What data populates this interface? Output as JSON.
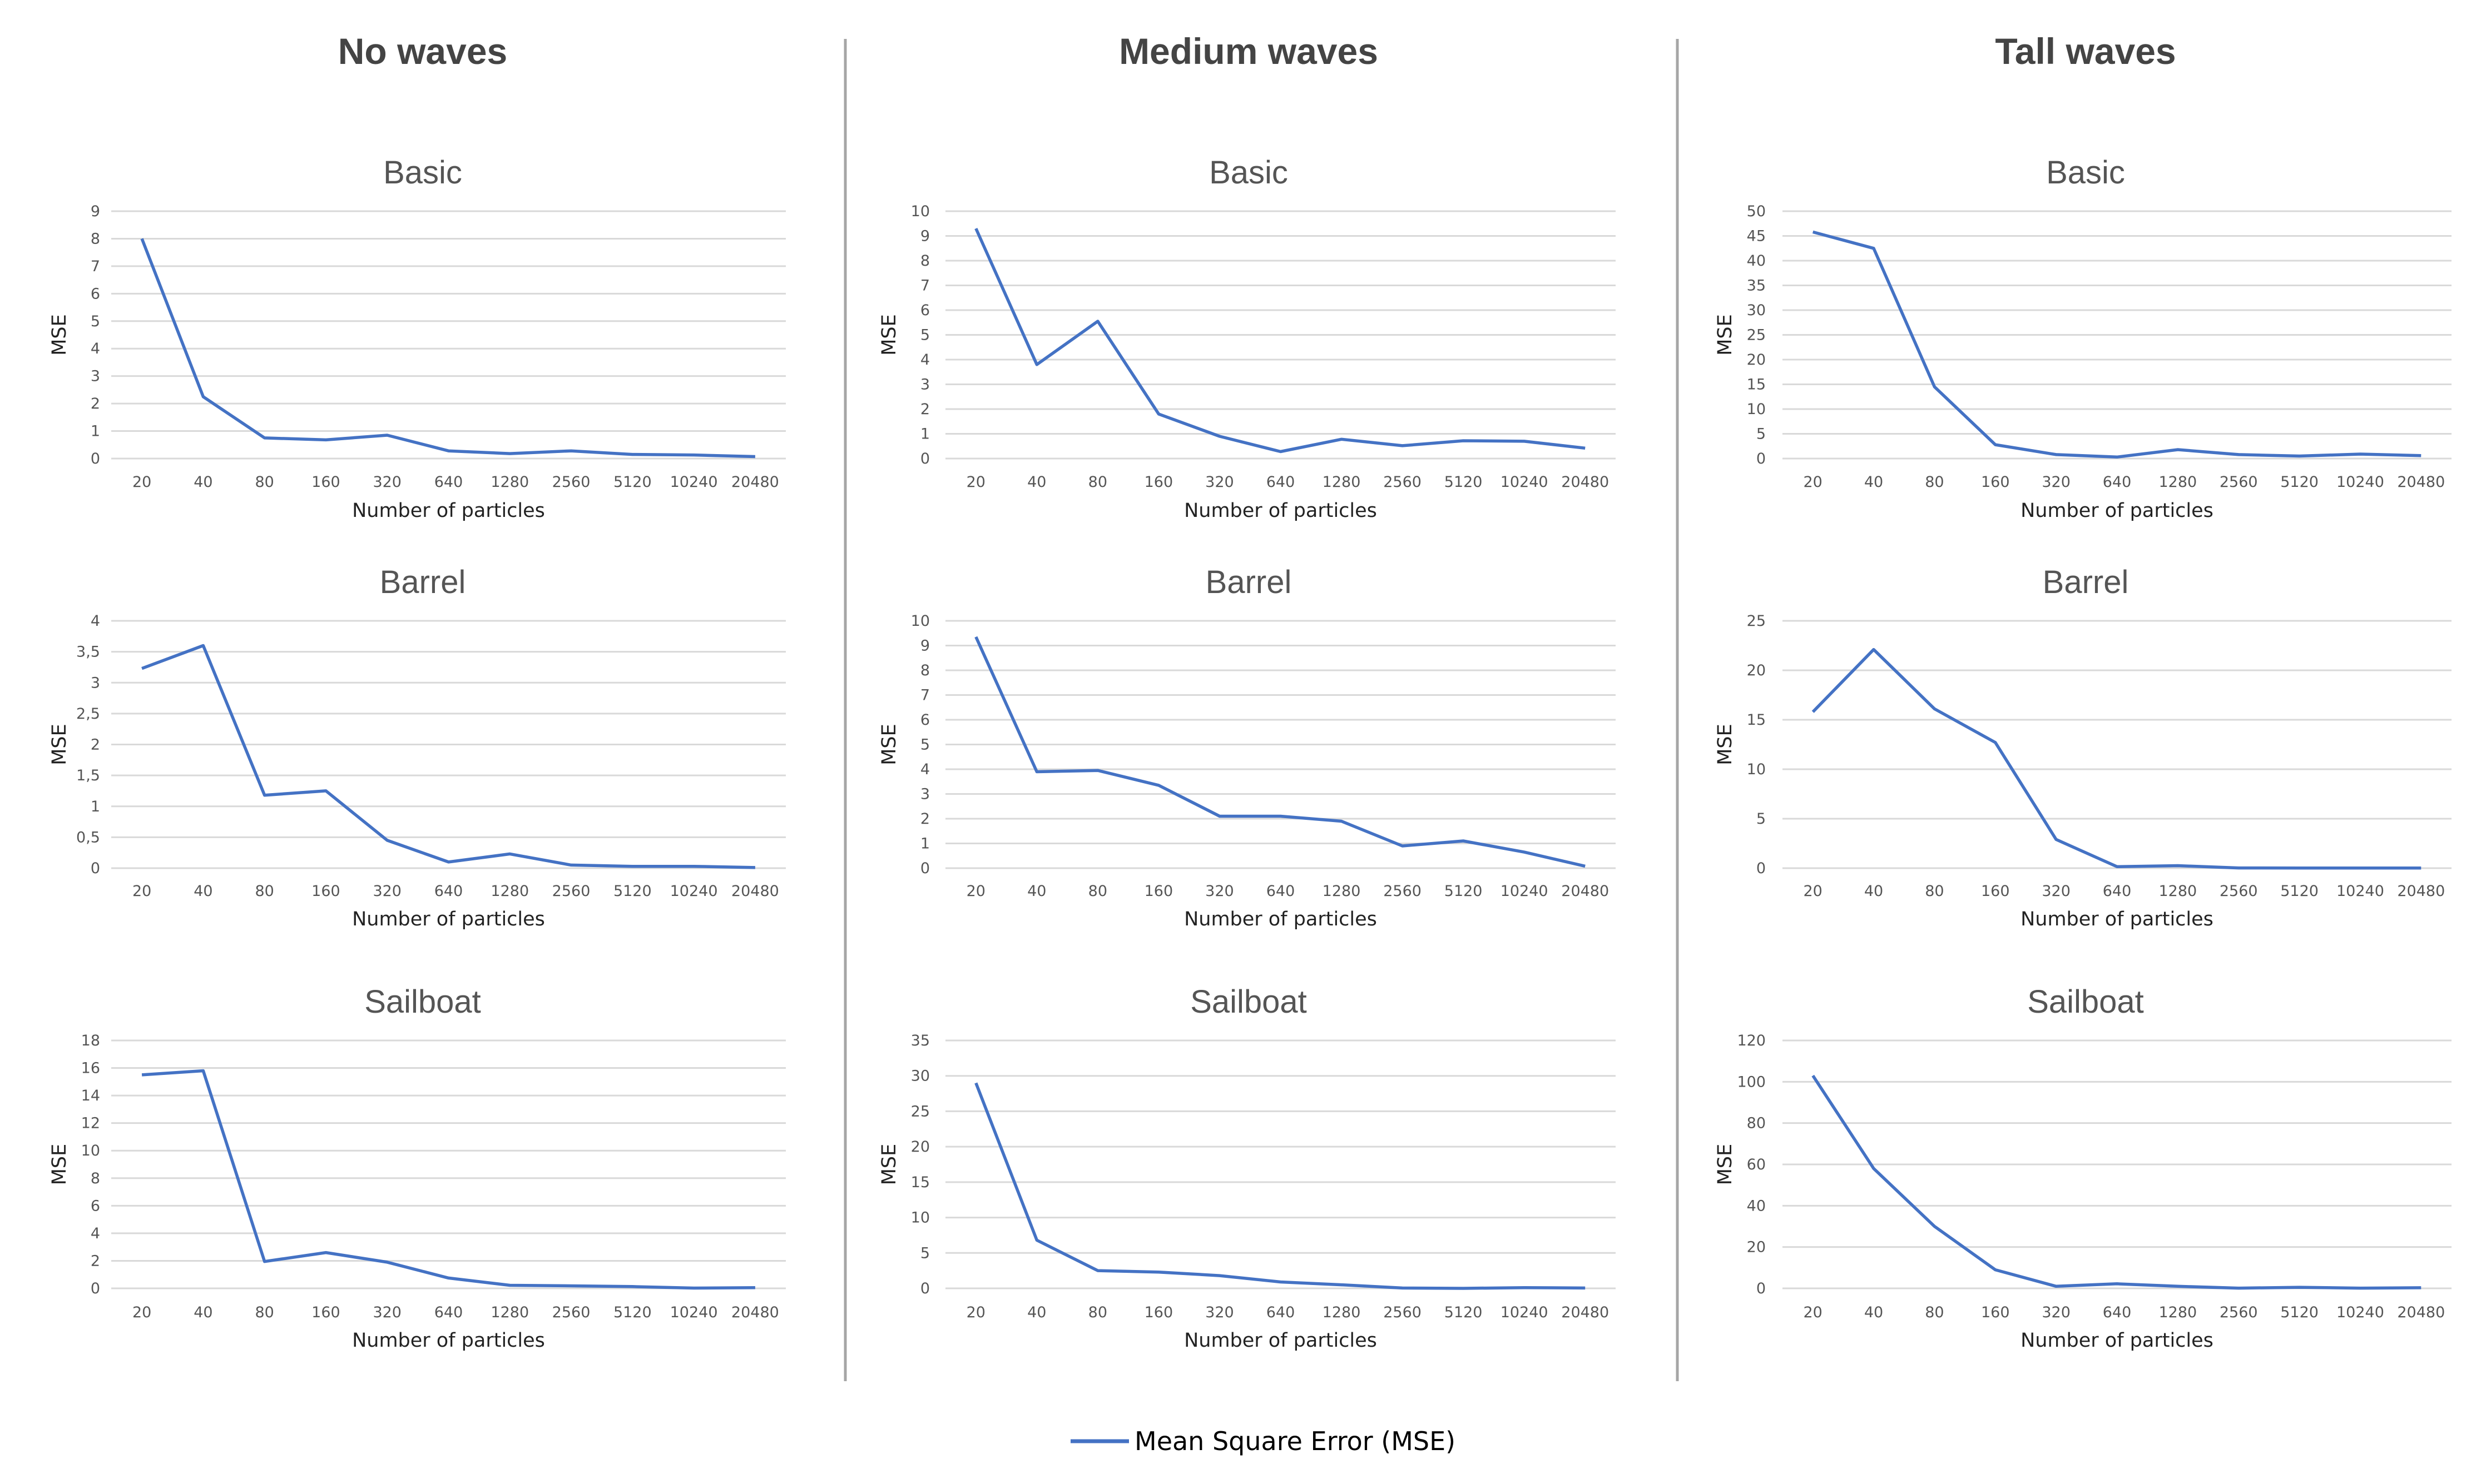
{
  "columns": [
    "No waves",
    "Medium waves",
    "Tall waves"
  ],
  "legend": {
    "label": "Mean Square Error (MSE)",
    "color": "#4472c4"
  },
  "chart_data": [
    {
      "type": "line",
      "column": "No waves",
      "title": "Basic",
      "xlabel": "Number of particles",
      "ylabel": "MSE",
      "categories": [
        "20",
        "40",
        "80",
        "160",
        "320",
        "640",
        "1280",
        "2560",
        "5120",
        "10240",
        "20480"
      ],
      "yticks": [
        "0",
        "1",
        "2",
        "3",
        "4",
        "5",
        "6",
        "7",
        "8",
        "9"
      ],
      "ylim": [
        0,
        9
      ],
      "series": [
        {
          "values": [
            8,
            2.25,
            0.75,
            0.68,
            0.85,
            0.28,
            0.18,
            0.28,
            0.15,
            0.13,
            0.07
          ]
        }
      ]
    },
    {
      "type": "line",
      "column": "Medium waves",
      "title": "Basic",
      "xlabel": "Number of particles",
      "ylabel": "MSE",
      "categories": [
        "20",
        "40",
        "80",
        "160",
        "320",
        "640",
        "1280",
        "2560",
        "5120",
        "10240",
        "20480"
      ],
      "yticks": [
        "0",
        "1",
        "2",
        "3",
        "4",
        "5",
        "6",
        "7",
        "8",
        "9",
        "10"
      ],
      "ylim": [
        0,
        10
      ],
      "series": [
        {
          "values": [
            9.3,
            3.8,
            5.55,
            1.8,
            0.9,
            0.28,
            0.78,
            0.52,
            0.72,
            0.7,
            0.42
          ]
        }
      ]
    },
    {
      "type": "line",
      "column": "Tall waves",
      "title": "Basic",
      "xlabel": "Number of particles",
      "ylabel": "MSE",
      "categories": [
        "20",
        "40",
        "80",
        "160",
        "320",
        "640",
        "1280",
        "2560",
        "5120",
        "10240",
        "20480"
      ],
      "yticks": [
        "0",
        "5",
        "10",
        "15",
        "20",
        "25",
        "30",
        "35",
        "40",
        "45",
        "50"
      ],
      "ylim": [
        0,
        50
      ],
      "series": [
        {
          "values": [
            45.8,
            42.5,
            14.5,
            2.8,
            0.8,
            0.3,
            1.8,
            0.8,
            0.5,
            0.9,
            0.6
          ]
        }
      ]
    },
    {
      "type": "line",
      "column": "No waves",
      "title": "Barrel",
      "xlabel": "Number of particles",
      "ylabel": "MSE",
      "categories": [
        "20",
        "40",
        "80",
        "160",
        "320",
        "640",
        "1280",
        "2560",
        "5120",
        "10240",
        "20480"
      ],
      "yticks": [
        "0",
        "0,5",
        "1",
        "1,5",
        "2",
        "2,5",
        "3",
        "3,5",
        "4"
      ],
      "ylim": [
        0,
        4
      ],
      "series": [
        {
          "values": [
            3.23,
            3.6,
            1.18,
            1.25,
            0.45,
            0.1,
            0.23,
            0.05,
            0.03,
            0.03,
            0.01
          ]
        }
      ]
    },
    {
      "type": "line",
      "column": "Medium waves",
      "title": "Barrel",
      "xlabel": "Number of particles",
      "ylabel": "MSE",
      "categories": [
        "20",
        "40",
        "80",
        "160",
        "320",
        "640",
        "1280",
        "2560",
        "5120",
        "10240",
        "20480"
      ],
      "yticks": [
        "0",
        "1",
        "2",
        "3",
        "4",
        "5",
        "6",
        "7",
        "8",
        "9",
        "10"
      ],
      "ylim": [
        0,
        10
      ],
      "series": [
        {
          "values": [
            9.35,
            3.9,
            3.95,
            3.35,
            2.1,
            2.1,
            1.9,
            0.9,
            1.1,
            0.65,
            0.08
          ]
        }
      ]
    },
    {
      "type": "line",
      "column": "Tall waves",
      "title": "Barrel",
      "xlabel": "Number of particles",
      "ylabel": "MSE",
      "categories": [
        "20",
        "40",
        "80",
        "160",
        "320",
        "640",
        "1280",
        "2560",
        "5120",
        "10240",
        "20480"
      ],
      "yticks": [
        "0",
        "5",
        "10",
        "15",
        "20",
        "25"
      ],
      "ylim": [
        0,
        25
      ],
      "series": [
        {
          "values": [
            15.8,
            22.1,
            16.1,
            12.7,
            2.9,
            0.15,
            0.25,
            0.02,
            0.01,
            0.01,
            0.01
          ]
        }
      ]
    },
    {
      "type": "line",
      "column": "No waves",
      "title": "Sailboat",
      "xlabel": "Number of particles",
      "ylabel": "MSE",
      "categories": [
        "20",
        "40",
        "80",
        "160",
        "320",
        "640",
        "1280",
        "2560",
        "5120",
        "10240",
        "20480"
      ],
      "yticks": [
        "0",
        "2",
        "4",
        "6",
        "8",
        "10",
        "12",
        "14",
        "16",
        "18"
      ],
      "ylim": [
        0,
        18
      ],
      "series": [
        {
          "values": [
            15.5,
            15.8,
            1.95,
            2.6,
            1.9,
            0.75,
            0.22,
            0.18,
            0.13,
            0.02,
            0.05
          ]
        }
      ]
    },
    {
      "type": "line",
      "column": "Medium waves",
      "title": "Sailboat",
      "xlabel": "Number of particles",
      "ylabel": "MSE",
      "categories": [
        "20",
        "40",
        "80",
        "160",
        "320",
        "640",
        "1280",
        "2560",
        "5120",
        "10240",
        "20480"
      ],
      "yticks": [
        "0",
        "5",
        "10",
        "15",
        "20",
        "25",
        "30",
        "35"
      ],
      "ylim": [
        0,
        35
      ],
      "series": [
        {
          "values": [
            29,
            6.8,
            2.5,
            2.3,
            1.8,
            0.9,
            0.5,
            0.05,
            0.0,
            0.1,
            0.05
          ]
        }
      ]
    },
    {
      "type": "line",
      "column": "Tall waves",
      "title": "Sailboat",
      "xlabel": "Number of particles",
      "ylabel": "MSE",
      "categories": [
        "20",
        "40",
        "80",
        "160",
        "320",
        "640",
        "1280",
        "2560",
        "5120",
        "10240",
        "20480"
      ],
      "yticks": [
        "0",
        "20",
        "40",
        "60",
        "80",
        "100",
        "120"
      ],
      "ylim": [
        0,
        120
      ],
      "series": [
        {
          "values": [
            103,
            58,
            30,
            9,
            1,
            2.2,
            1,
            0.1,
            0.5,
            0.1,
            0.3
          ]
        }
      ]
    }
  ]
}
